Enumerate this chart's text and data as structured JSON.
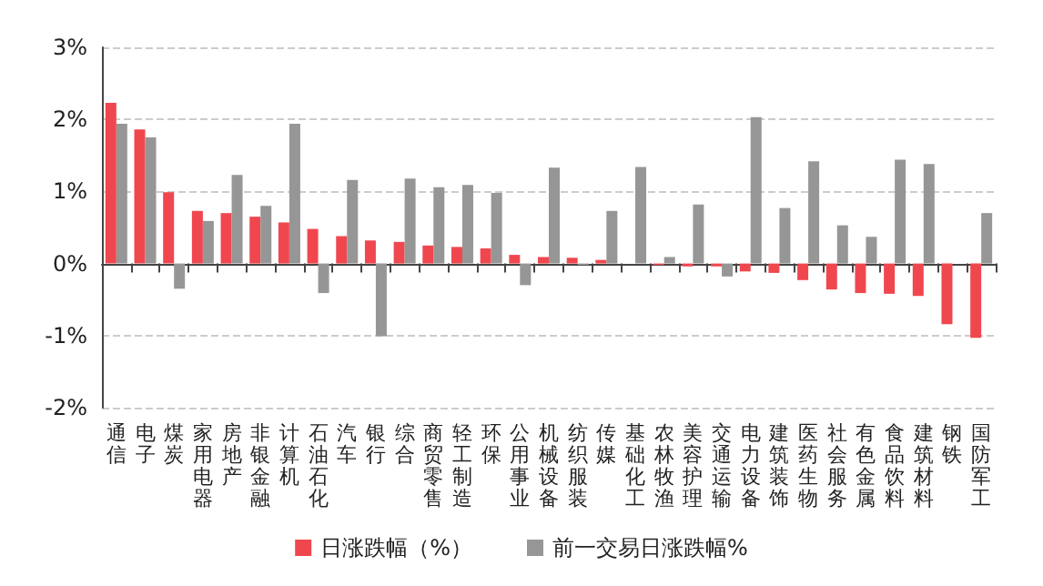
{
  "chart_data": {
    "type": "bar",
    "categories": [
      "通信",
      "电子",
      "煤炭",
      "家用电器",
      "房地产",
      "非银金融",
      "计算机",
      "石油石化",
      "汽车",
      "银行",
      "综合",
      "商贸零售",
      "轻工制造",
      "环保",
      "公用事业",
      "机械设备",
      "纺织服装",
      "传媒",
      "基础化工",
      "农林牧渔",
      "美容护理",
      "交通运输",
      "电力设备",
      "建筑装饰",
      "医药生物",
      "社会服务",
      "有色金属",
      "食品饮料",
      "建筑材料",
      "钢铁",
      "国防军工"
    ],
    "series": [
      {
        "name": "日涨跌幅（%）",
        "color": "#f0474f",
        "values": [
          2.23,
          1.86,
          0.99,
          0.73,
          0.7,
          0.65,
          0.57,
          0.48,
          0.38,
          0.32,
          0.3,
          0.25,
          0.23,
          0.21,
          0.12,
          0.09,
          0.08,
          0.05,
          0.0,
          -0.02,
          -0.04,
          -0.04,
          -0.11,
          -0.13,
          -0.23,
          -0.36,
          -0.41,
          -0.42,
          -0.45,
          -0.84,
          -1.03
        ]
      },
      {
        "name": "前一交易日涨跌幅%",
        "color": "#969696",
        "values": [
          1.94,
          1.75,
          -0.35,
          0.59,
          1.23,
          0.8,
          1.94,
          -0.41,
          1.16,
          -1.01,
          1.18,
          1.06,
          1.09,
          0.98,
          -0.3,
          1.33,
          -0.02,
          0.73,
          1.34,
          0.09,
          0.82,
          -0.18,
          2.03,
          0.77,
          1.42,
          0.53,
          0.37,
          1.44,
          1.38,
          0.0,
          0.7
        ]
      }
    ],
    "ylim": [
      -2,
      3
    ],
    "yticks": [
      {
        "value": -2,
        "label": "-2%"
      },
      {
        "value": -1,
        "label": "-1%"
      },
      {
        "value": 0,
        "label": "0%"
      },
      {
        "value": 1,
        "label": "1%"
      },
      {
        "value": 2,
        "label": "2%"
      },
      {
        "value": 3,
        "label": "3%"
      }
    ],
    "grid": "y",
    "legend": "bottom"
  }
}
